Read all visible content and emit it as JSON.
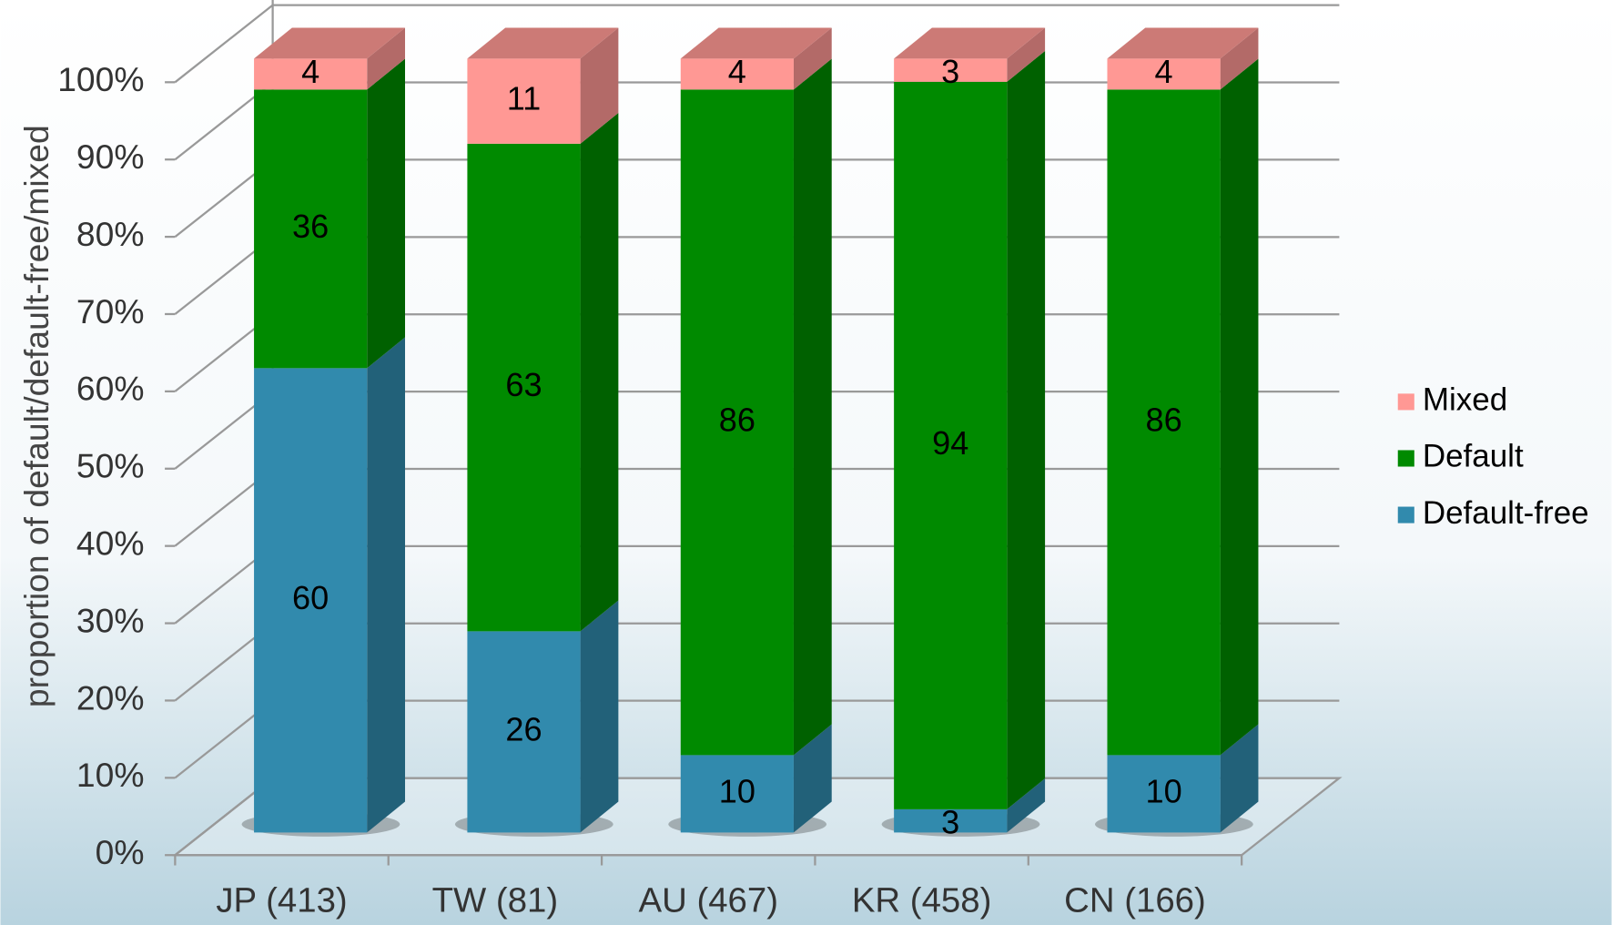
{
  "chart_data": {
    "type": "bar",
    "stacked": true,
    "y_label": "proportion of default/default-free/mixed",
    "categories": [
      "JP (413)",
      "TW (81)",
      "AU (467)",
      "KR (458)",
      "CN (166)"
    ],
    "series": [
      {
        "name": "Default-free",
        "color": "#318aad",
        "values": [
          60,
          26,
          10,
          3,
          10
        ]
      },
      {
        "name": "Default",
        "color": "#008a00",
        "values": [
          36,
          63,
          86,
          94,
          86
        ]
      },
      {
        "name": "Mixed",
        "color": "#ff9894",
        "values": [
          4,
          11,
          4,
          3,
          4
        ]
      }
    ],
    "ylim": [
      0,
      100
    ],
    "yticks": [
      {
        "value": 0,
        "label": "0%"
      },
      {
        "value": 10,
        "label": "10%"
      },
      {
        "value": 20,
        "label": "20%"
      },
      {
        "value": 30,
        "label": "30%"
      },
      {
        "value": 40,
        "label": "40%"
      },
      {
        "value": 50,
        "label": "50%"
      },
      {
        "value": 60,
        "label": "60%"
      },
      {
        "value": 70,
        "label": "70%"
      },
      {
        "value": 80,
        "label": "80%"
      },
      {
        "value": 90,
        "label": "90%"
      },
      {
        "value": 100,
        "label": "100%"
      }
    ],
    "grid": true,
    "legend": "right"
  }
}
